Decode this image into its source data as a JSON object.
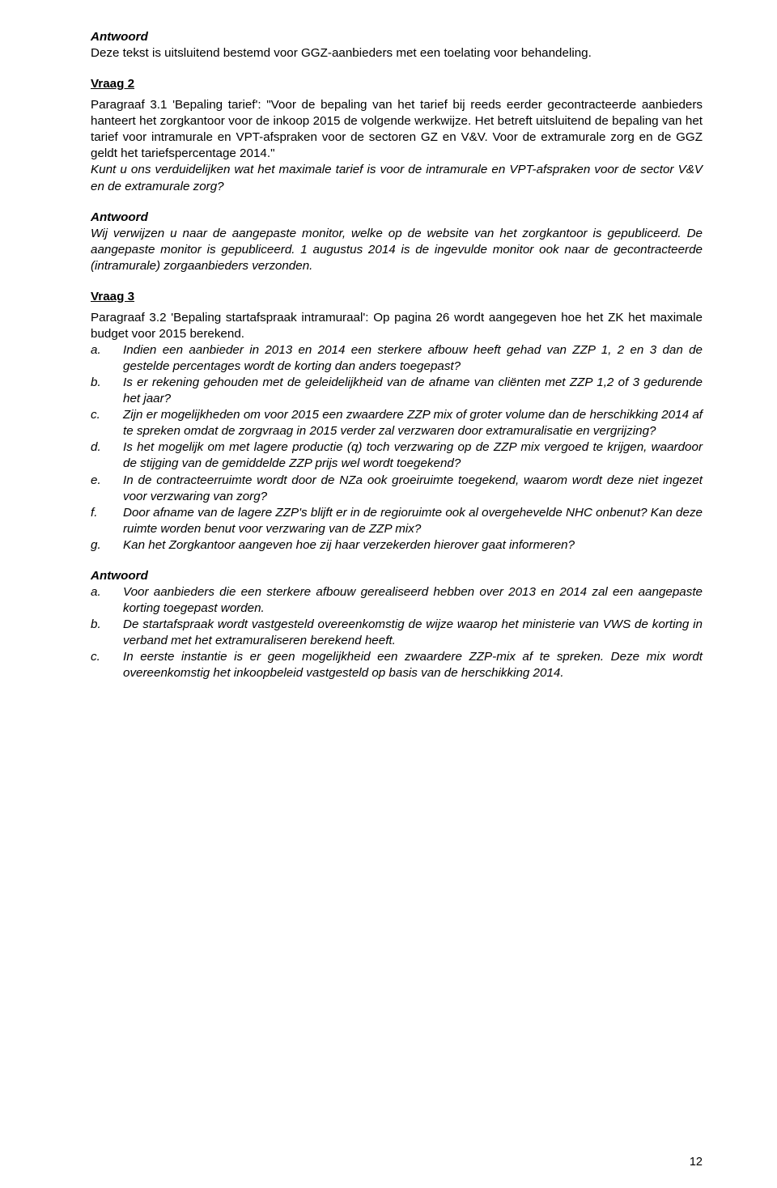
{
  "colors": {
    "text": "#000000",
    "background": "#ffffff"
  },
  "typography": {
    "font_family": "Verdana",
    "body_size_pt": 11,
    "line_height": 1.32
  },
  "page_number": "12",
  "q1": {
    "antwoord_label": "Antwoord",
    "body": "Deze tekst is uitsluitend bestemd voor GGZ-aanbieders met een toelating voor behandeling."
  },
  "q2": {
    "heading": "Vraag 2",
    "p1": "Paragraaf 3.1 'Bepaling tarief': \"Voor de bepaling van het tarief bij reeds eerder gecontracteerde aanbieders hanteert het zorgkantoor voor de inkoop 2015 de volgende werkwijze. Het betreft uitsluitend de bepaling van het tarief voor intramurale en VPT-afspraken voor de sectoren GZ en V&V. Voor de extramurale zorg en de GGZ geldt het tariefspercentage 2014.\"",
    "p2": "Kunt u ons verduidelijken wat het maximale tarief is voor de intramurale en VPT-afspraken voor de sector V&V en de extramurale zorg?",
    "antwoord_label": "Antwoord",
    "ans": "Wij verwijzen u naar de aangepaste monitor, welke op de website van het zorgkantoor is gepubliceerd. De aangepaste monitor is gepubliceerd. 1 augustus 2014 is de ingevulde monitor ook naar de gecontracteerde (intramurale) zorgaanbieders verzonden."
  },
  "q3": {
    "heading": "Vraag 3",
    "intro": "Paragraaf 3.2 'Bepaling startafspraak intramuraal': Op pagina 26 wordt aangegeven hoe het ZK het maximale budget voor 2015 berekend.",
    "items": [
      {
        "label": "a.",
        "text": "Indien een aanbieder in 2013 en 2014 een sterkere afbouw heeft gehad van ZZP 1, 2 en 3 dan de gestelde percentages wordt de korting dan anders toegepast?"
      },
      {
        "label": "b.",
        "text": "Is er rekening gehouden met de geleidelijkheid van de afname van cliënten met ZZP 1,2 of 3 gedurende het jaar?"
      },
      {
        "label": "c.",
        "text": "Zijn er mogelijkheden om voor 2015 een zwaardere ZZP mix of groter volume dan de herschikking 2014 af te spreken omdat de zorgvraag in 2015 verder zal verzwaren door extramuralisatie en vergrijzing?"
      },
      {
        "label": "d.",
        "text": "Is het mogelijk om met lagere productie (q) toch verzwaring op de ZZP mix vergoed te krijgen, waardoor de stijging van de gemiddelde ZZP prijs wel wordt toegekend?"
      },
      {
        "label": "e.",
        "text": "In de contracteerruimte wordt door de NZa ook groeiruimte toegekend, waarom wordt deze niet ingezet voor verzwaring van zorg?"
      },
      {
        "label": "f.",
        "text": "Door afname van de lagere ZZP's blijft er in de regioruimte ook al overgehevelde NHC onbenut? Kan deze ruimte worden benut voor verzwaring van de ZZP mix?"
      },
      {
        "label": "g.",
        "text": "Kan het Zorgkantoor aangeven hoe zij haar verzekerden hierover gaat informeren?"
      }
    ],
    "antwoord_label": "Antwoord",
    "ans_items": [
      {
        "label": "a.",
        "text": "Voor aanbieders die een sterkere afbouw gerealiseerd hebben over 2013 en 2014 zal een aangepaste korting toegepast worden."
      },
      {
        "label": "b.",
        "text": "De startafspraak wordt vastgesteld overeenkomstig de wijze waarop het ministerie van VWS de korting in verband met het extramuraliseren berekend heeft."
      },
      {
        "label": "c.",
        "text": "In eerste instantie is er geen mogelijkheid een zwaardere ZZP-mix af te spreken. Deze mix wordt overeenkomstig het inkoopbeleid vastgesteld op basis van de herschikking 2014."
      }
    ]
  }
}
